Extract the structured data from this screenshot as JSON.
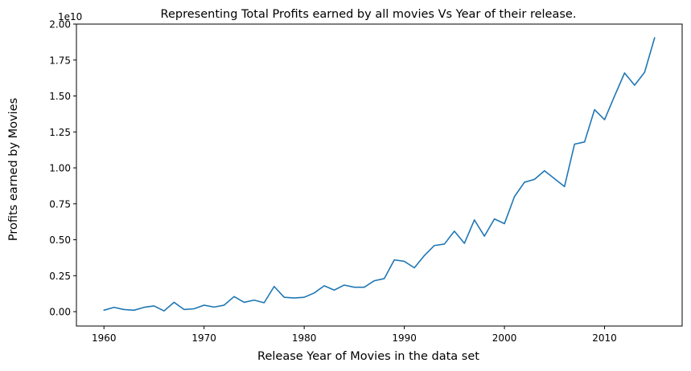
{
  "chart_data": {
    "type": "line",
    "title": "Representing Total Profits earned by all movies Vs Year of their release.",
    "xlabel": "Release Year of Movies in the data set",
    "ylabel": "Profits earned by Movies",
    "y_offset_label": "1e10",
    "xlim": [
      1957.25,
      2017.75
    ],
    "ylim": [
      -0.1,
      2.0
    ],
    "x_ticks": [
      1960,
      1970,
      1980,
      1990,
      2000,
      2010
    ],
    "y_ticks": [
      "0.00",
      "0.25",
      "0.50",
      "0.75",
      "1.00",
      "1.25",
      "1.50",
      "1.75",
      "2.00"
    ],
    "line_color": "#1f77b4",
    "grid": false,
    "series": [
      {
        "x": [
          1960,
          1961,
          1962,
          1963,
          1964,
          1965,
          1966,
          1967,
          1968,
          1969,
          1970,
          1971,
          1972,
          1973,
          1974,
          1975,
          1976,
          1977,
          1978,
          1979,
          1980,
          1981,
          1982,
          1983,
          1984,
          1985,
          1986,
          1987,
          1988,
          1989,
          1990,
          1991,
          1992,
          1993,
          1994,
          1995,
          1996,
          1997,
          1998,
          1999,
          2000,
          2001,
          2002,
          2003,
          2004,
          2005,
          2006,
          2007,
          2008,
          2009,
          2010,
          2011,
          2012,
          2013,
          2014,
          2015
        ],
        "y": [
          0.01,
          0.03,
          0.015,
          0.01,
          0.03,
          0.04,
          0.005,
          0.065,
          0.015,
          0.02,
          0.045,
          0.032,
          0.045,
          0.105,
          0.065,
          0.08,
          0.062,
          0.175,
          0.1,
          0.095,
          0.1,
          0.13,
          0.18,
          0.15,
          0.185,
          0.17,
          0.17,
          0.215,
          0.23,
          0.36,
          0.35,
          0.305,
          0.39,
          0.46,
          0.47,
          0.56,
          0.475,
          0.638,
          0.525,
          0.645,
          0.612,
          0.8,
          0.9,
          0.92,
          0.98,
          0.925,
          0.87,
          1.165,
          1.18,
          1.405,
          1.335,
          1.5,
          1.66,
          1.575,
          1.665,
          1.905
        ]
      }
    ]
  }
}
